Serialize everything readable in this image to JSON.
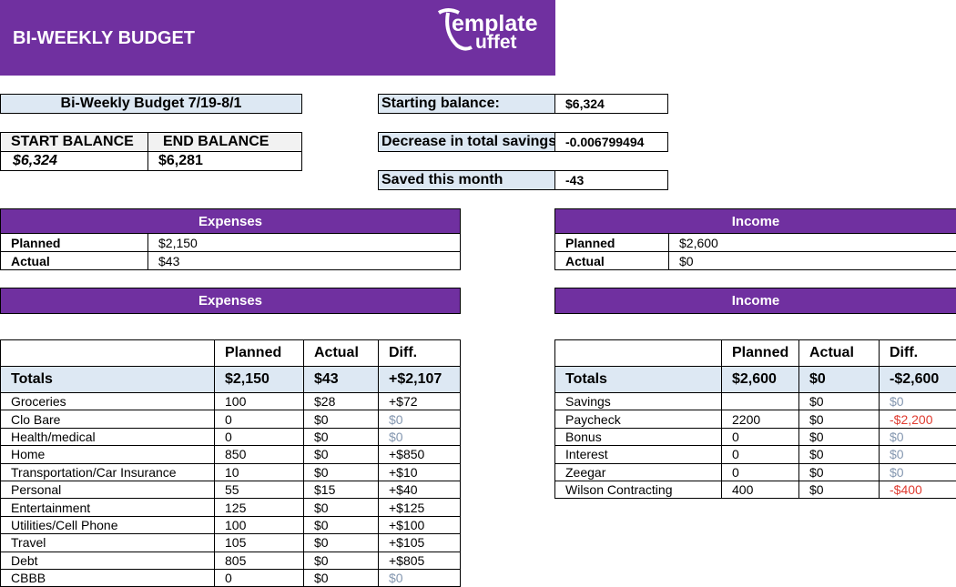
{
  "header": {
    "title": "BI-WEEKLY BUDGET",
    "logo": [
      "emplate",
      "uffet"
    ]
  },
  "summary": {
    "period": "Bi-Weekly Budget 7/19-8/1",
    "start_label": "START BALANCE",
    "end_label": "END BALANCE",
    "start_value": "$6,324",
    "end_value": "$6,281"
  },
  "stats": [
    {
      "label": "Starting balance:",
      "value": "$6,324"
    },
    {
      "label": "Decrease in total savings",
      "value": "-0.006799494"
    },
    {
      "label": "Saved this month",
      "value": "-43"
    }
  ],
  "expenses_summary": {
    "title": "Expenses",
    "rows": [
      [
        "Planned",
        "$2,150"
      ],
      [
        "Actual",
        "$43"
      ]
    ]
  },
  "income_summary": {
    "title": "Income",
    "rows": [
      [
        "Planned",
        "$2,600"
      ],
      [
        "Actual",
        "$0"
      ]
    ]
  },
  "expenses_banner": "Expenses",
  "income_banner": "Income",
  "expenses_table": {
    "header": [
      "Planned",
      "Actual",
      "Diff."
    ],
    "totals": [
      "Totals",
      "$2,150",
      "$43",
      "+$2,107"
    ],
    "rows": [
      [
        "Groceries",
        "100",
        "$28",
        "+$72"
      ],
      [
        "Clo Bare",
        "0",
        "$0",
        "$0"
      ],
      [
        "Health/medical",
        "0",
        "$0",
        "$0"
      ],
      [
        "Home",
        "850",
        "$0",
        "+$850"
      ],
      [
        "Transportation/Car Insurance",
        "10",
        "$0",
        "+$10"
      ],
      [
        "Personal",
        "55",
        "$15",
        "+$40"
      ],
      [
        "Entertainment",
        "125",
        "$0",
        "+$125"
      ],
      [
        "Utilities/Cell Phone",
        "100",
        "$0",
        "+$100"
      ],
      [
        "Travel",
        "105",
        "$0",
        "+$105"
      ],
      [
        "Debt",
        "805",
        "$0",
        "+$805"
      ],
      [
        "CBBB",
        "0",
        "$0",
        "$0"
      ]
    ]
  },
  "income_table": {
    "header": [
      "Planned",
      "Actual",
      "Diff."
    ],
    "totals": [
      "Totals",
      "$2,600",
      "$0",
      "-$2,600"
    ],
    "rows": [
      [
        "Savings",
        null,
        "$0",
        "$0"
      ],
      [
        "Paycheck",
        "2200",
        "$0",
        "-$2,200"
      ],
      [
        "Bonus",
        "0",
        "$0",
        "$0"
      ],
      [
        "Interest",
        "0",
        "$0",
        "$0"
      ],
      [
        "Zeegar",
        "0",
        "$0",
        "$0"
      ],
      [
        "Wilson Contracting",
        "400",
        "$0",
        "-$400"
      ]
    ]
  }
}
